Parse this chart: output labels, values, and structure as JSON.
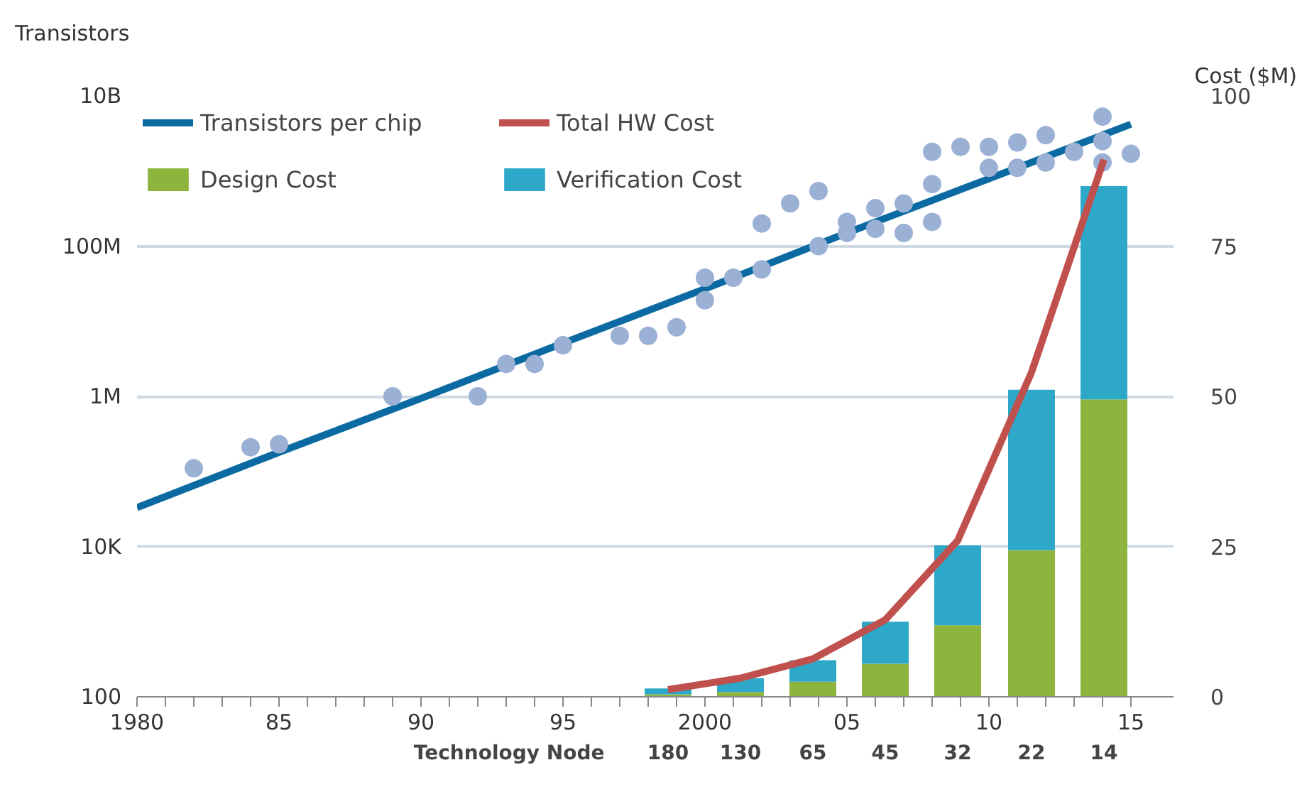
{
  "chart_data": {
    "type": "bar",
    "ylabel": "Transistors",
    "y2label": "Cost ($M)",
    "annotations": [
      "Technology Node",
      "180",
      "130",
      "65",
      "45",
      "32",
      "22",
      "14"
    ],
    "xlim": [
      1980,
      2016.5
    ],
    "ylim": [
      100,
      10000000000
    ],
    "y2lim": [
      0,
      100
    ],
    "log": "y",
    "xticks": [
      1980,
      {
        "value": 1981,
        "label": null
      },
      {
        "value": 1982,
        "label": null
      },
      {
        "value": 1983,
        "label": null
      },
      {
        "value": 1984,
        "label": null
      },
      {
        "value": 1985,
        "label": "85"
      },
      {
        "value": 1986,
        "label": null
      },
      {
        "value": 1987,
        "label": null
      },
      {
        "value": 1988,
        "label": null
      },
      {
        "value": 1989,
        "label": null
      },
      {
        "value": 1990,
        "label": "90"
      },
      {
        "value": 1991,
        "label": null
      },
      {
        "value": 1992,
        "label": null
      },
      {
        "value": 1993,
        "label": null
      },
      {
        "value": 1994,
        "label": null
      },
      {
        "value": 1995,
        "label": "95"
      },
      {
        "value": 1996,
        "label": null
      },
      {
        "value": 1997,
        "label": null
      },
      {
        "value": 1998,
        "label": null
      },
      {
        "value": 1999,
        "label": null
      },
      {
        "value": 2000,
        "label": "2000"
      },
      {
        "value": 2001,
        "label": null
      },
      {
        "value": 2002,
        "label": null
      },
      {
        "value": 2003,
        "label": null
      },
      {
        "value": 2004,
        "label": null
      },
      {
        "value": 2005,
        "label": "05"
      },
      {
        "value": 2006,
        "label": null
      },
      {
        "value": 2007,
        "label": null
      },
      {
        "value": 2008,
        "label": null
      },
      {
        "value": 2009,
        "label": null
      },
      {
        "value": 2010,
        "label": "10"
      },
      {
        "value": 2011,
        "label": null
      },
      {
        "value": 2012,
        "label": null
      },
      {
        "value": 2013,
        "label": null
      },
      {
        "value": 2014,
        "label": null
      },
      {
        "value": 2015,
        "label": "15"
      }
    ],
    "yticks": [
      {
        "value": 100,
        "label": "100"
      },
      {
        "value": 10000,
        "label": "10K"
      },
      {
        "value": 1000000,
        "label": "1M"
      },
      {
        "value": 100000000,
        "label": "100M"
      },
      {
        "value": 10000000000,
        "label": "10B"
      }
    ],
    "y2ticks": [
      0,
      25,
      50,
      75,
      100
    ],
    "grid": "y",
    "legend": "top left",
    "stacked": true,
    "series": [
      {
        "name": "Transistors per chip",
        "type": "line",
        "color": "#0a6aa1",
        "x": [
          1980,
          1985,
          1990,
          1995,
          2000,
          2005,
          2010,
          2015
        ],
        "values": [
          33000,
          180000,
          940000,
          5100000,
          27000000,
          150000000,
          790000000,
          4200000000
        ]
      },
      {
        "type": "scatter",
        "color": "#9ab0d4",
        "marker": "circle",
        "x": [
          1982,
          1984,
          1985,
          1989,
          1992,
          1993,
          1994,
          1995,
          1997,
          1998,
          1999,
          2000,
          2000,
          2001,
          2002,
          2002,
          2003,
          2004,
          2004,
          2005,
          2005,
          2006,
          2006,
          2007,
          2007,
          2008,
          2008,
          2008,
          2009,
          2010,
          2010,
          2011,
          2011,
          2012,
          2012,
          2013,
          2014,
          2014,
          2014,
          2015
        ],
        "values": [
          110000,
          210000,
          230000,
          1000000,
          1000000,
          2700000,
          2700000,
          4800000,
          6400000,
          6400000,
          8300000,
          38000000,
          19000000,
          38000000,
          200000000,
          49000000,
          370000000,
          540000000,
          100000000,
          210000000,
          150000000,
          320000000,
          170000000,
          370000000,
          150000000,
          1800000000,
          670000000,
          210000000,
          2100000000,
          2100000000,
          1100000000,
          2400000000,
          1100000000,
          3000000000,
          1300000000,
          1800000000,
          5300000000,
          2500000000,
          1300000000,
          1700000000
        ]
      },
      {
        "name": "Design Cost",
        "axis": "y2",
        "color": "#8db43c",
        "x": [
          1998.7,
          2001.25,
          2003.8,
          2006.35,
          2008.9,
          2011.5,
          2014.05
        ],
        "values": [
          0.4,
          0.8,
          2.5,
          5.5,
          11.9,
          24.4,
          49.5
        ]
      },
      {
        "name": "Verification Cost",
        "axis": "y2",
        "color": "#2ea8c8",
        "x": [
          1998.7,
          2001.25,
          2003.8,
          2006.35,
          2008.9,
          2011.5,
          2014.05
        ],
        "values": [
          1.0,
          2.3,
          3.6,
          7.0,
          13.3,
          26.7,
          35.5
        ]
      },
      {
        "name": "Total HW Cost",
        "type": "line",
        "axis": "y2",
        "color": "#c0504d",
        "x": [
          1998.7,
          2001.25,
          2003.8,
          2006.35,
          2008.9,
          2011.5,
          2014.05
        ],
        "values": [
          1.2,
          3.1,
          6.3,
          12.8,
          26.0,
          54.0,
          89.4
        ]
      }
    ]
  }
}
